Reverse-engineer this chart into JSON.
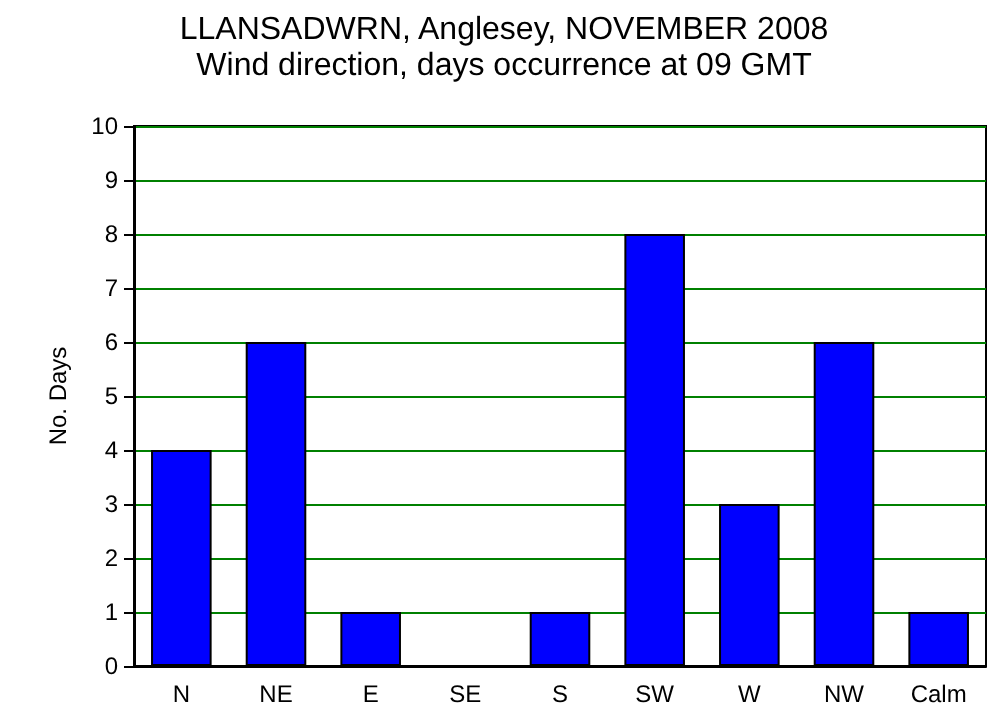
{
  "chart_data": {
    "type": "bar",
    "title": "LLANSADWRN, Anglesey, NOVEMBER 2008",
    "subtitle": "Wind direction, days occurrence at 09 GMT",
    "ylabel": "No. Days",
    "categories": [
      "N",
      "NE",
      "E",
      "SE",
      "S",
      "SW",
      "W",
      "NW",
      "Calm"
    ],
    "values": [
      4,
      6,
      1,
      0,
      1,
      8,
      3,
      6,
      1
    ],
    "color": "#0000ff",
    "ylim": [
      0,
      10
    ],
    "yticks": [
      0,
      1,
      2,
      3,
      4,
      5,
      6,
      7,
      8,
      9,
      10
    ],
    "grid": "y"
  }
}
